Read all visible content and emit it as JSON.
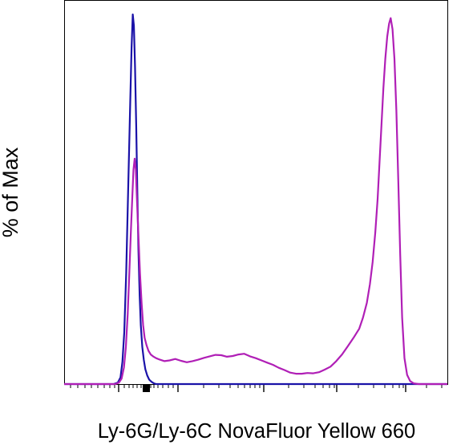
{
  "chart_data": {
    "type": "line",
    "title": "",
    "xlabel": "Ly-6G/Ly-6C NovaFluor Yellow 660",
    "ylabel": "% of Max",
    "xlim": [
      0,
      1000
    ],
    "ylim": [
      0,
      100
    ],
    "x_scale": "logicle (biexponential)",
    "x_tick_labels": "none",
    "y_tick_labels": "none",
    "grid": false,
    "legend": "none",
    "series": [
      {
        "color": "#1a12a8",
        "x": [
          0,
          129,
          140,
          147,
          152,
          157,
          162,
          167,
          172,
          176,
          179,
          182,
          185,
          188,
          191,
          194,
          197,
          200,
          204,
          208,
          212,
          217,
          222,
          228,
          234,
          240,
          300,
          400,
          500,
          600,
          700,
          800,
          900,
          1000
        ],
        "y": [
          0,
          0,
          0.4,
          1.8,
          6,
          14,
          30,
          52,
          74,
          91,
          100,
          97,
          86,
          70,
          52,
          36,
          24,
          16,
          10,
          6.5,
          4,
          2.3,
          1.2,
          0.6,
          0.2,
          0,
          0,
          0,
          0,
          0,
          0,
          0,
          0,
          0
        ]
      },
      {
        "color": "#b01fb6",
        "x": [
          0,
          133,
          143,
          150,
          156,
          161,
          166,
          170,
          174,
          178,
          181,
          184,
          187,
          190,
          194,
          198,
          202,
          206,
          210,
          215,
          220,
          226,
          232,
          240,
          250,
          262,
          275,
          290,
          305,
          320,
          335,
          350,
          365,
          380,
          395,
          410,
          425,
          440,
          455,
          470,
          485,
          500,
          515,
          530,
          545,
          560,
          575,
          590,
          605,
          620,
          635,
          650,
          665,
          680,
          695,
          710,
          725,
          740,
          755,
          770,
          780,
          790,
          798,
          805,
          812,
          818,
          823,
          828,
          833,
          838,
          843,
          848,
          852,
          857,
          862,
          867,
          872,
          877,
          882,
          888,
          895,
          903,
          912,
          925,
          950,
          1000
        ],
        "y": [
          0,
          0,
          0.4,
          1.5,
          4.5,
          10,
          19,
          30,
          41,
          51,
          58,
          61,
          58,
          50,
          40,
          30,
          22,
          16,
          12.5,
          10.5,
          9,
          8,
          7.5,
          7,
          6.6,
          6.2,
          6.4,
          6.8,
          6.3,
          5.9,
          6.2,
          6.6,
          7.1,
          7.5,
          7.9,
          7.8,
          7.4,
          7.6,
          8.0,
          8.2,
          7.5,
          7.0,
          6.4,
          5.8,
          5.2,
          4.4,
          3.8,
          3.1,
          2.8,
          2.8,
          3.0,
          2.9,
          3.2,
          3.9,
          4.7,
          6.2,
          8.0,
          10.2,
          12.5,
          15.0,
          18.0,
          22.0,
          27.0,
          33.0,
          41.0,
          50.0,
          60.0,
          70.0,
          80.0,
          88.0,
          94.0,
          97.5,
          99.0,
          96.0,
          88.0,
          74.0,
          55.0,
          35.0,
          18.0,
          7.0,
          2.5,
          0.8,
          0.2,
          0,
          0,
          0
        ]
      }
    ]
  }
}
